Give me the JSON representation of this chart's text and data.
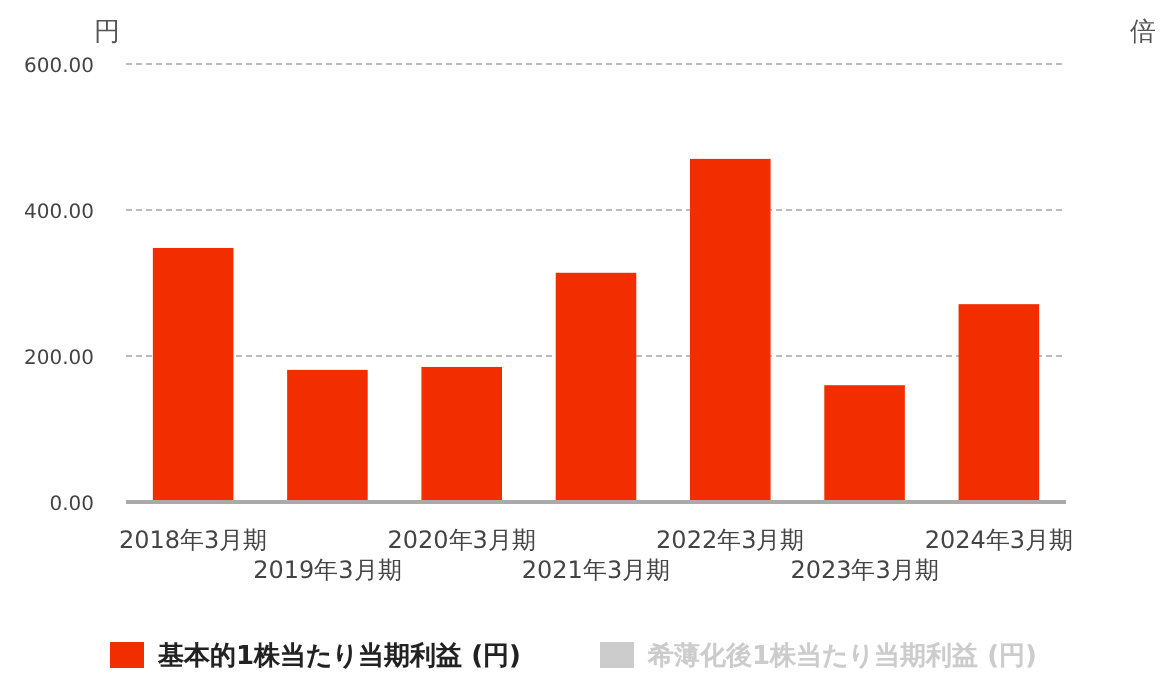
{
  "chart_data": {
    "type": "bar",
    "ylabel": "円",
    "y2label": "倍",
    "categories": [
      "2018年3月期",
      "2019年3月期",
      "2020年3月期",
      "2021年3月期",
      "2022年3月期",
      "2023年3月期",
      "2024年3月期"
    ],
    "series": [
      {
        "name": "基本的1株当たり当期利益 (円)",
        "color": "#f22d00",
        "values": [
          348,
          181,
          185,
          314,
          470,
          160,
          271
        ]
      },
      {
        "name": "希薄化後1株当たり当期利益 (円)",
        "color": "#cccccc",
        "values": [
          null,
          null,
          null,
          null,
          null,
          null,
          null
        ]
      }
    ],
    "ylim": [
      0,
      600
    ],
    "yticks": [
      {
        "value": 0,
        "label": "0.00"
      },
      {
        "value": 200,
        "label": "200.00"
      },
      {
        "value": 400,
        "label": "400.00"
      },
      {
        "value": 600,
        "label": "600.00"
      }
    ],
    "grid": "y",
    "legend": "bottom"
  }
}
